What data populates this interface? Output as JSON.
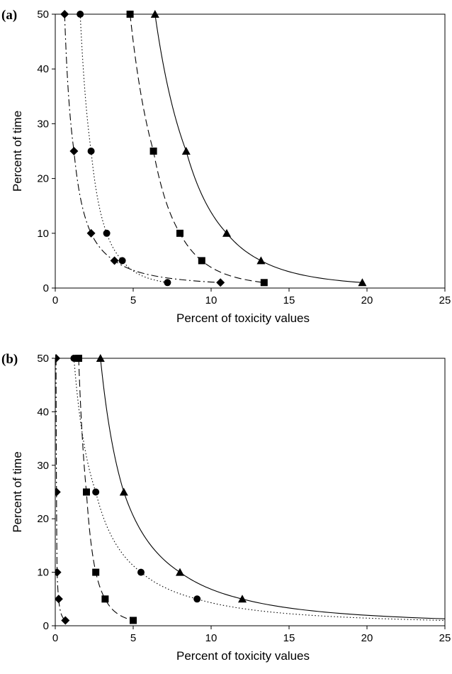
{
  "chart_data": [
    {
      "type": "line",
      "panel_label": "(a)",
      "xlabel": "Percent of toxicity values",
      "ylabel": "Percent of time",
      "xlim": [
        0,
        25
      ],
      "ylim": [
        0,
        50
      ],
      "xticks": [
        "0",
        "5",
        "10",
        "15",
        "20",
        "25"
      ],
      "yticks": [
        "0",
        "10",
        "20",
        "30",
        "40",
        "50"
      ],
      "grid": false,
      "series": [
        {
          "marker": "diamond",
          "line": "dash-dot",
          "points": [
            [
              0.6,
              50
            ],
            [
              1.2,
              25
            ],
            [
              2.3,
              10
            ],
            [
              3.8,
              5
            ],
            [
              10.6,
              1
            ]
          ]
        },
        {
          "marker": "circle",
          "line": "dotted",
          "points": [
            [
              1.6,
              50
            ],
            [
              2.3,
              25
            ],
            [
              3.3,
              10
            ],
            [
              4.3,
              5
            ],
            [
              7.2,
              1
            ]
          ]
        },
        {
          "marker": "square",
          "line": "dashed",
          "points": [
            [
              4.8,
              50
            ],
            [
              6.3,
              25
            ],
            [
              8.0,
              10
            ],
            [
              9.4,
              5
            ],
            [
              13.4,
              1
            ]
          ]
        },
        {
          "marker": "triangle",
          "line": "solid",
          "points": [
            [
              6.4,
              50
            ],
            [
              8.4,
              25
            ],
            [
              11.0,
              10
            ],
            [
              13.2,
              5
            ],
            [
              19.7,
              1
            ]
          ]
        }
      ]
    },
    {
      "type": "line",
      "panel_label": "(b)",
      "xlabel": "Percent of toxicity values",
      "ylabel": "Percent of time",
      "xlim": [
        0,
        25
      ],
      "ylim": [
        0,
        50
      ],
      "xticks": [
        "0",
        "5",
        "10",
        "15",
        "20",
        "25"
      ],
      "yticks": [
        "0",
        "10",
        "20",
        "30",
        "40",
        "50"
      ],
      "grid": false,
      "series": [
        {
          "marker": "diamond",
          "line": "dash-dot",
          "points": [
            [
              0.05,
              50
            ],
            [
              0.08,
              25
            ],
            [
              0.12,
              10
            ],
            [
              0.22,
              5
            ],
            [
              0.65,
              1
            ]
          ]
        },
        {
          "marker": "circle",
          "line": "dotted",
          "points": [
            [
              1.2,
              50
            ],
            [
              2.6,
              25
            ],
            [
              5.5,
              10
            ],
            [
              9.1,
              5
            ],
            [
              25,
              1
            ]
          ]
        },
        {
          "marker": "square",
          "line": "dashed",
          "points": [
            [
              1.5,
              50
            ],
            [
              2.0,
              25
            ],
            [
              2.6,
              10
            ],
            [
              3.2,
              5
            ],
            [
              5.0,
              1
            ]
          ]
        },
        {
          "marker": "triangle",
          "line": "solid",
          "points": [
            [
              2.9,
              50
            ],
            [
              4.4,
              25
            ],
            [
              8.0,
              10
            ],
            [
              12.0,
              5
            ],
            [
              25,
              1.3
            ]
          ]
        }
      ]
    }
  ]
}
